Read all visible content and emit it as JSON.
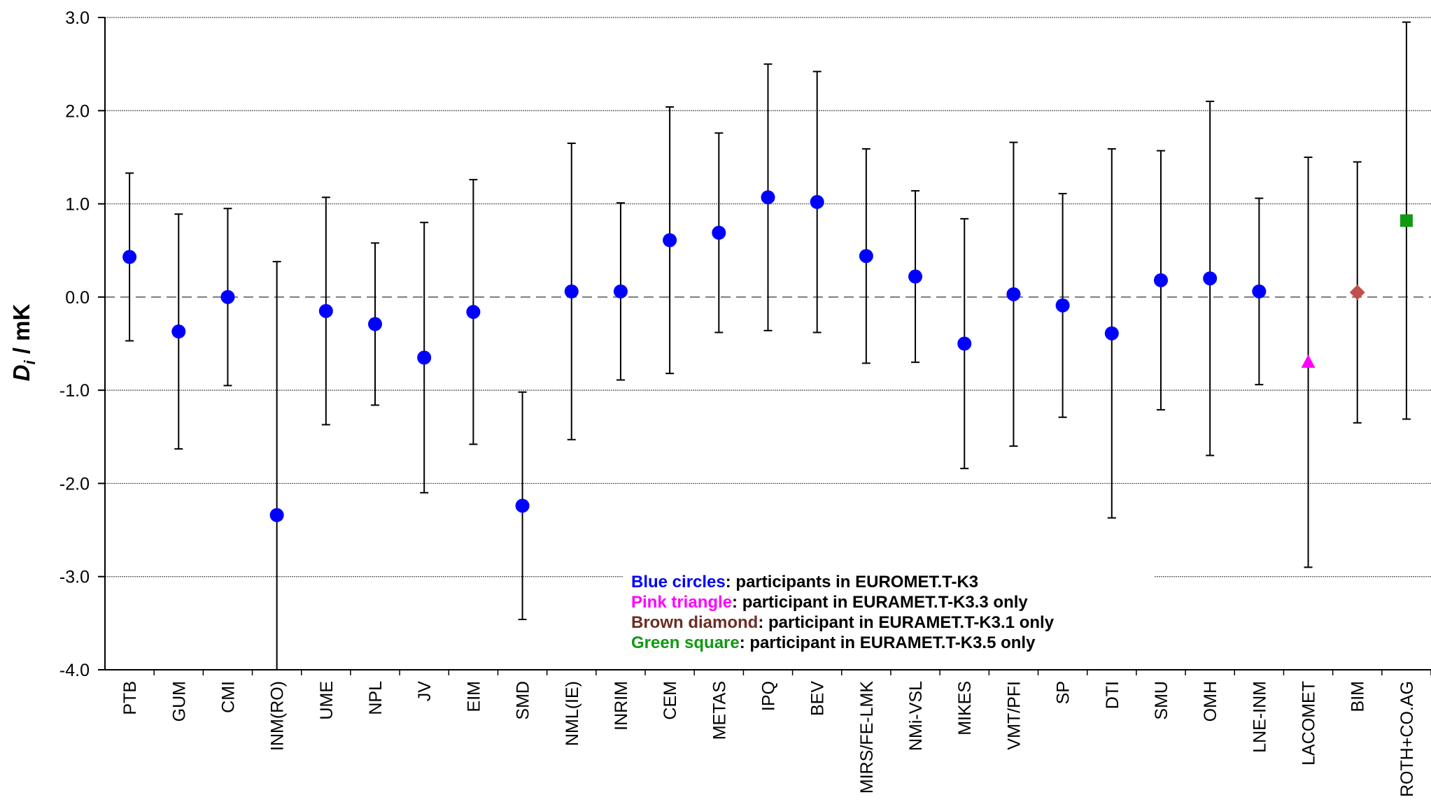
{
  "chart_data": {
    "type": "scatter",
    "title": "",
    "xlabel": "",
    "ylabel_main": "D",
    "ylabel_sub": "i",
    "ylabel_unit": " / mK",
    "ylim": [
      -4.0,
      3.0
    ],
    "yticks": [
      3.0,
      2.0,
      1.0,
      0.0,
      -1.0,
      -2.0,
      -3.0,
      -4.0
    ],
    "ytick_labels": [
      "3.0",
      "2.0",
      "1.0",
      "0.0",
      "-1.0",
      "-2.0",
      "-3.0",
      "-4.0"
    ],
    "grid": true,
    "categories": [
      "PTB",
      "GUM",
      "CMI",
      "INM(RO)",
      "UME",
      "NPL",
      "JV",
      "EIM",
      "SMD",
      "NML(IE)",
      "INRIM",
      "CEM",
      "METAS",
      "IPQ",
      "BEV",
      "MIRS/FE-LMK",
      "NMi-VSL",
      "MIKES",
      "VMT/PFI",
      "SP",
      "DTI",
      "SMU",
      "OMH",
      "LNE-INM",
      "LACOMET",
      "BIM",
      "ROTH+CO.AG"
    ],
    "points": [
      {
        "label": "PTB",
        "value": 0.43,
        "lo": -0.47,
        "hi": 1.33,
        "marker": "circle"
      },
      {
        "label": "GUM",
        "value": -0.37,
        "lo": -1.63,
        "hi": 0.89,
        "marker": "circle"
      },
      {
        "label": "CMI",
        "value": 0.0,
        "lo": -0.95,
        "hi": 0.95,
        "marker": "circle"
      },
      {
        "label": "INM(RO)",
        "value": -2.34,
        "lo": -4.0,
        "hi": 0.38,
        "marker": "circle"
      },
      {
        "label": "UME",
        "value": -0.15,
        "lo": -1.37,
        "hi": 1.07,
        "marker": "circle"
      },
      {
        "label": "NPL",
        "value": -0.29,
        "lo": -1.16,
        "hi": 0.58,
        "marker": "circle"
      },
      {
        "label": "JV",
        "value": -0.65,
        "lo": -2.1,
        "hi": 0.8,
        "marker": "circle"
      },
      {
        "label": "EIM",
        "value": -0.16,
        "lo": -1.58,
        "hi": 1.26,
        "marker": "circle"
      },
      {
        "label": "SMD",
        "value": -2.24,
        "lo": -3.46,
        "hi": -1.02,
        "marker": "circle"
      },
      {
        "label": "NML(IE)",
        "value": 0.06,
        "lo": -1.53,
        "hi": 1.65,
        "marker": "circle"
      },
      {
        "label": "INRIM",
        "value": 0.06,
        "lo": -0.89,
        "hi": 1.01,
        "marker": "circle"
      },
      {
        "label": "CEM",
        "value": 0.61,
        "lo": -0.82,
        "hi": 2.04,
        "marker": "circle"
      },
      {
        "label": "METAS",
        "value": 0.69,
        "lo": -0.38,
        "hi": 1.76,
        "marker": "circle"
      },
      {
        "label": "IPQ",
        "value": 1.07,
        "lo": -0.36,
        "hi": 2.5,
        "marker": "circle"
      },
      {
        "label": "BEV",
        "value": 1.02,
        "lo": -0.38,
        "hi": 2.42,
        "marker": "circle"
      },
      {
        "label": "MIRS/FE-LMK",
        "value": 0.44,
        "lo": -0.71,
        "hi": 1.59,
        "marker": "circle"
      },
      {
        "label": "NMi-VSL",
        "value": 0.22,
        "lo": -0.7,
        "hi": 1.14,
        "marker": "circle"
      },
      {
        "label": "MIKES",
        "value": -0.5,
        "lo": -1.84,
        "hi": 0.84,
        "marker": "circle"
      },
      {
        "label": "VMT/PFI",
        "value": 0.03,
        "lo": -1.6,
        "hi": 1.66,
        "marker": "circle"
      },
      {
        "label": "SP",
        "value": -0.09,
        "lo": -1.29,
        "hi": 1.11,
        "marker": "circle"
      },
      {
        "label": "DTI",
        "value": -0.39,
        "lo": -2.37,
        "hi": 1.59,
        "marker": "circle"
      },
      {
        "label": "SMU",
        "value": 0.18,
        "lo": -1.21,
        "hi": 1.57,
        "marker": "circle"
      },
      {
        "label": "OMH",
        "value": 0.2,
        "lo": -1.7,
        "hi": 2.1,
        "marker": "circle"
      },
      {
        "label": "LNE-INM",
        "value": 0.06,
        "lo": -0.94,
        "hi": 1.06,
        "marker": "circle"
      },
      {
        "label": "LACOMET",
        "value": -0.7,
        "lo": -2.9,
        "hi": 1.5,
        "marker": "triangle"
      },
      {
        "label": "BIM",
        "value": 0.05,
        "lo": -1.35,
        "hi": 1.45,
        "marker": "diamond"
      },
      {
        "label": "ROTH+CO.AG",
        "value": 0.82,
        "lo": -1.31,
        "hi": 2.95,
        "marker": "square"
      }
    ],
    "legend_placement": "bottom-center",
    "legend": [
      {
        "key": "Blue circles",
        "text": ": participants in EUROMET.T-K3",
        "color": "#0000ff"
      },
      {
        "key": "Pink triangle",
        "text": ": participant in EURAMET.T-K3.3 only",
        "color": "#ff00ff"
      },
      {
        "key": "Brown diamond",
        "text": ": participant in EURAMET.T-K3.1 only",
        "color": "#6b2e24"
      },
      {
        "key": "Green square",
        "text": ": participant in EURAMET.T-K3.5 only",
        "color": "#119911"
      }
    ],
    "colors": {
      "circle": "#0000ff",
      "triangle": "#ff00ff",
      "diamond": "#c0504d",
      "square": "#119911",
      "errorbar": "#000000",
      "grid": "#555555"
    }
  }
}
